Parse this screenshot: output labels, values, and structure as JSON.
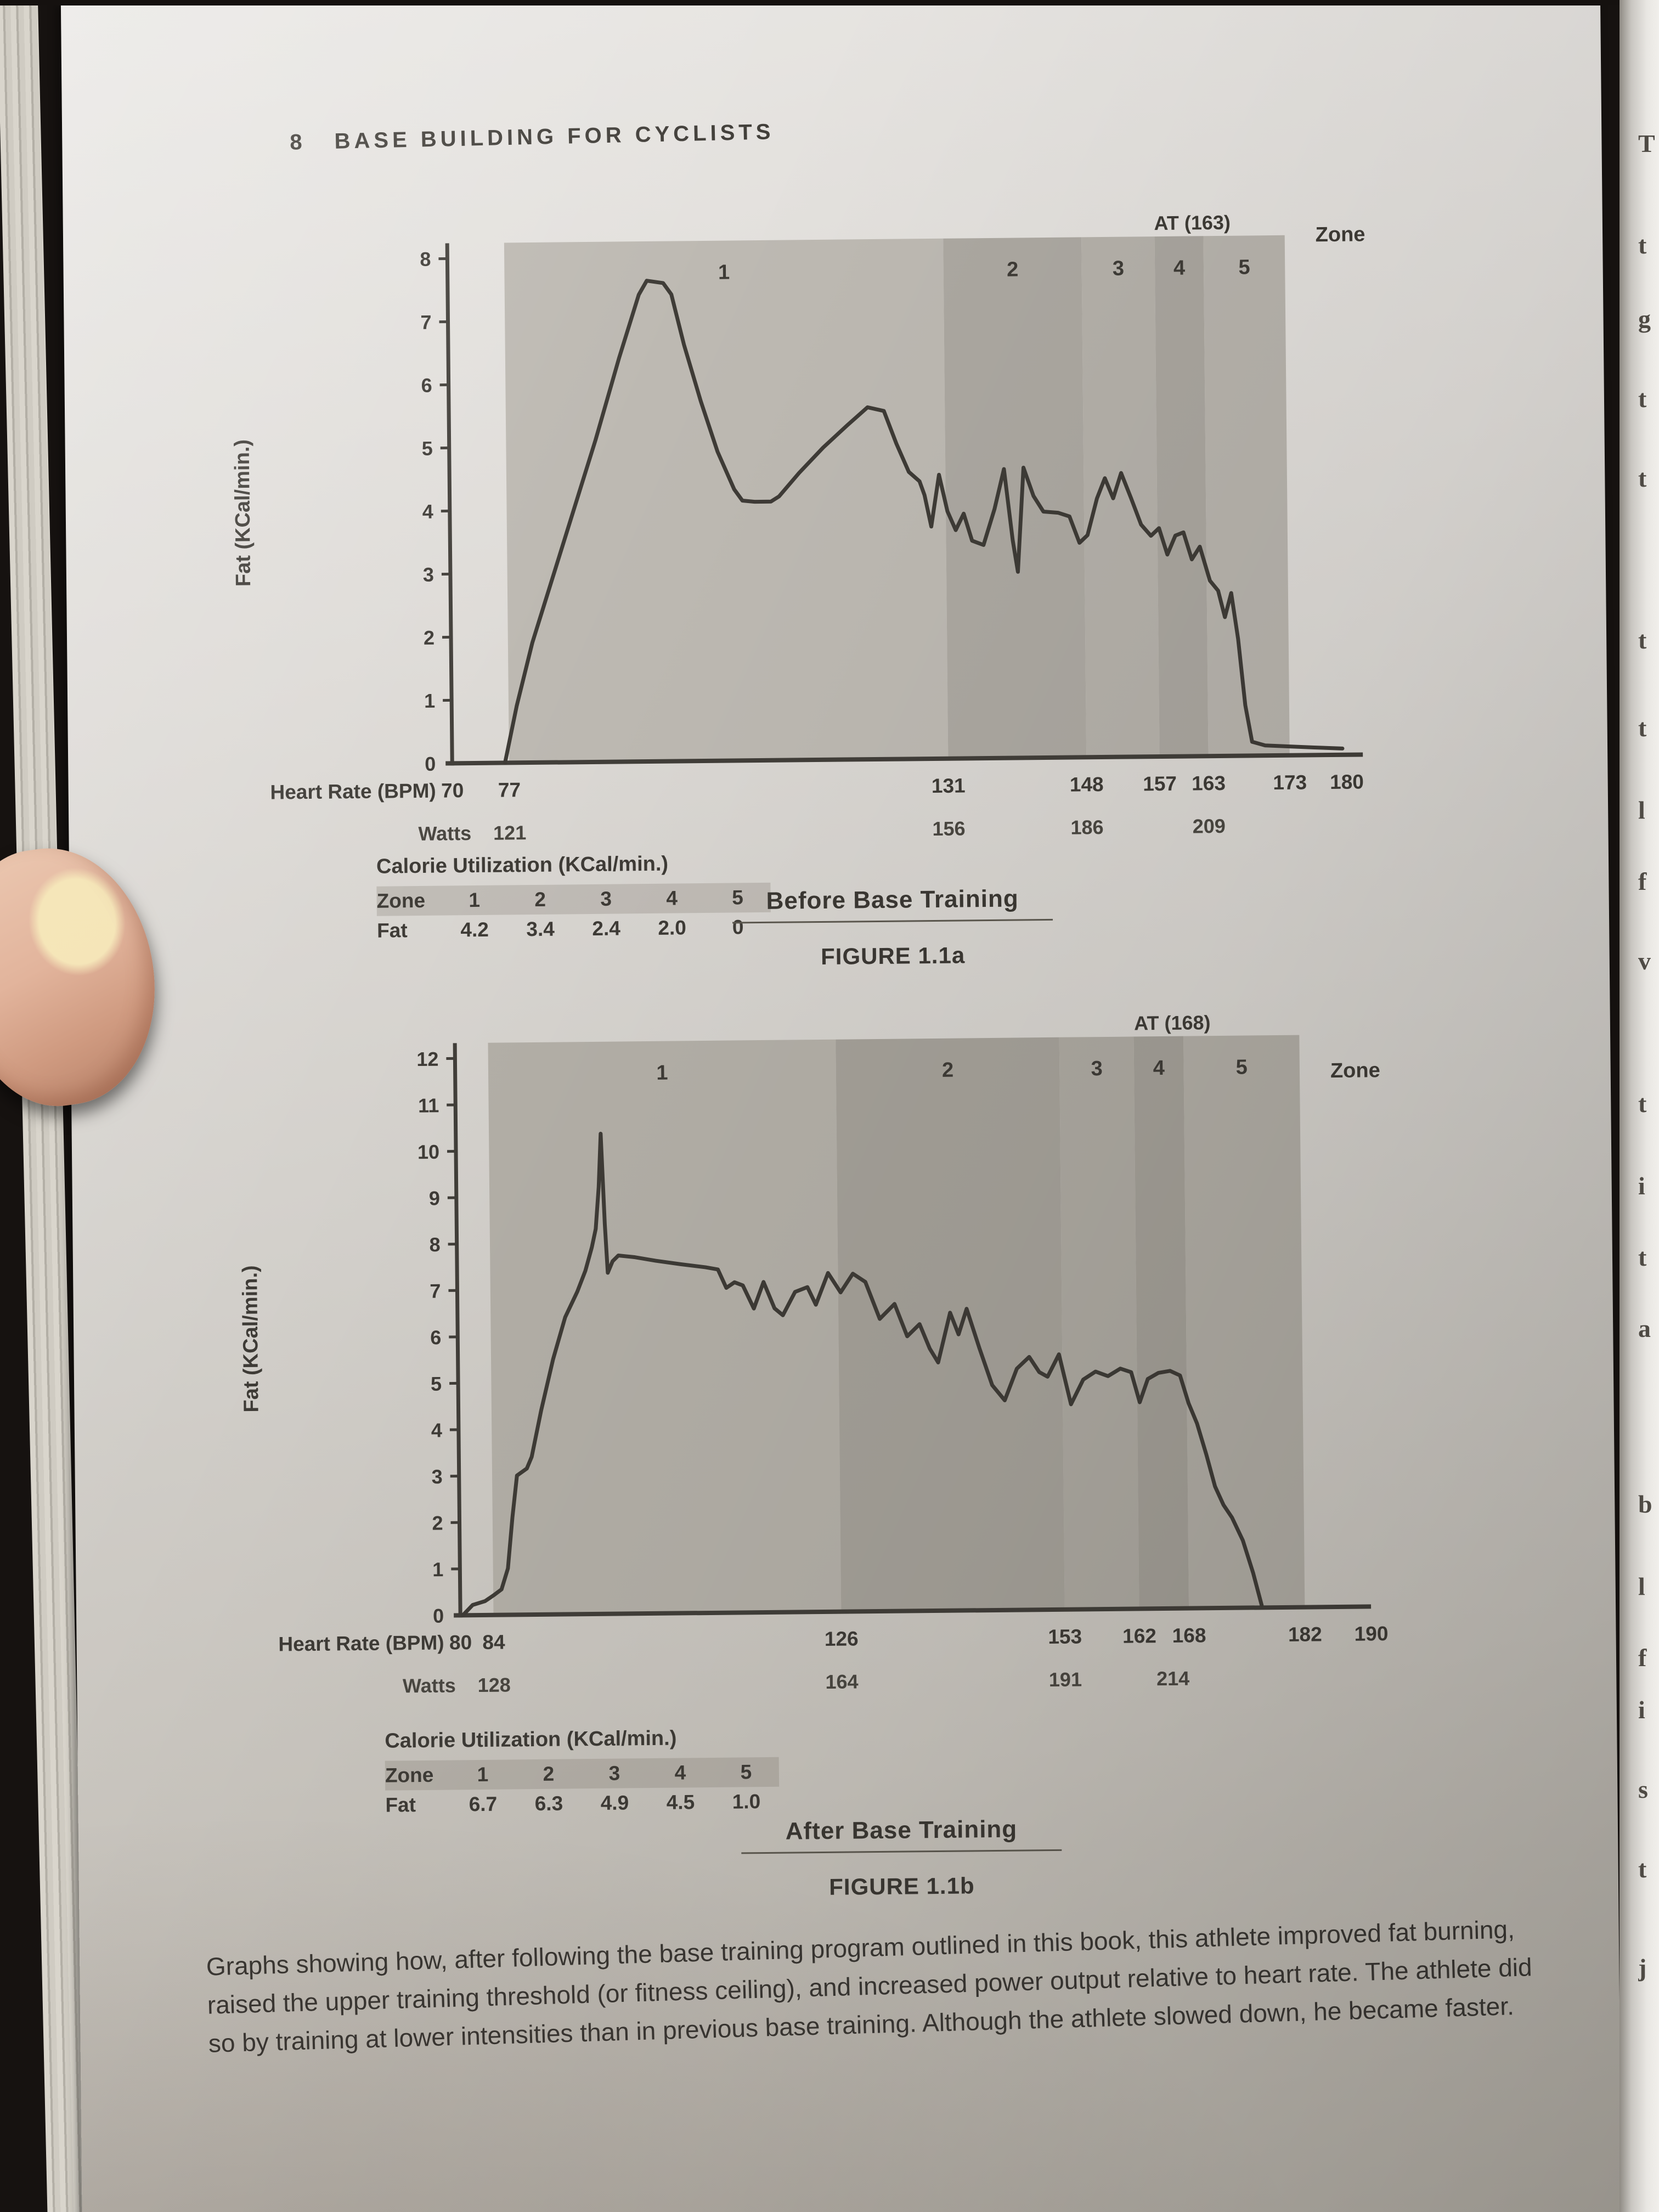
{
  "page": {
    "number": "8",
    "running_head": "BASE BUILDING FOR CYCLISTS",
    "caption": "Graphs showing how, after following the base training program outlined in this book, this athlete improved fat burning, raised the upper training threshold (or fitness ceiling), and increased power output relative to heart rate. The athlete did so by training at lower intensities than in previous base training. Although the athlete slowed down, he became faster."
  },
  "colors": {
    "curve": "#3e3b36",
    "axis": "#413e39",
    "chart_text": "#3e3b36",
    "page_light": "#e9e7e4",
    "page_dark": "#b4afa6"
  },
  "chart_data": [
    {
      "id": "figure-1-1a",
      "type": "line",
      "title": "Before Base Training",
      "figure_label": "FIGURE 1.1a",
      "ylabel": "Fat (KCal/min.)",
      "ylim": [
        0,
        8
      ],
      "yticks": [
        0,
        1,
        2,
        3,
        4,
        5,
        6,
        7,
        8
      ],
      "xlabel": "Heart Rate (BPM)",
      "x_bpm_range": [
        70,
        182
      ],
      "at_label": "AT (163)",
      "at_bpm": 163,
      "zone_axis_label": "Zone",
      "zones": [
        {
          "label": "1",
          "from": 77,
          "to": 131
        },
        {
          "label": "2",
          "from": 131,
          "to": 148
        },
        {
          "label": "3",
          "from": 148,
          "to": 157
        },
        {
          "label": "4",
          "from": 157,
          "to": 163
        },
        {
          "label": "5",
          "from": 163,
          "to": 173
        }
      ],
      "zone_fills": [
        "#bdb9b2",
        "#aca8a1",
        "#b4b0a9",
        "#a9a59e",
        "#b6b2ab"
      ],
      "hr_ticks": [
        70,
        77,
        131,
        148,
        157,
        163,
        173,
        180
      ],
      "watts_label": "Watts",
      "watts_ticks": [
        {
          "bpm": 77,
          "value": 121
        },
        {
          "bpm": 131,
          "value": 156
        },
        {
          "bpm": 148,
          "value": 186
        },
        {
          "bpm": 163,
          "value": 209
        }
      ],
      "series": [
        {
          "name": "fat-burn-before",
          "points": [
            [
              76.5,
              0
            ],
            [
              78,
              0.9
            ],
            [
              80,
              1.9
            ],
            [
              83,
              3.1
            ],
            [
              86,
              4.3
            ],
            [
              88,
              5.1
            ],
            [
              91,
              6.4
            ],
            [
              93.5,
              7.4
            ],
            [
              94.5,
              7.62
            ],
            [
              96.5,
              7.58
            ],
            [
              97.5,
              7.4
            ],
            [
              99,
              6.6
            ],
            [
              101,
              5.7
            ],
            [
              103,
              4.9
            ],
            [
              105,
              4.3
            ],
            [
              106,
              4.12
            ],
            [
              107.5,
              4.1
            ],
            [
              109.5,
              4.1
            ],
            [
              110.5,
              4.18
            ],
            [
              113,
              4.55
            ],
            [
              116,
              4.95
            ],
            [
              119,
              5.3
            ],
            [
              121.5,
              5.58
            ],
            [
              123.5,
              5.52
            ],
            [
              125,
              5.0
            ],
            [
              126.5,
              4.55
            ],
            [
              127.8,
              4.4
            ],
            [
              128.4,
              4.18
            ],
            [
              129.2,
              3.68
            ],
            [
              130.2,
              4.5
            ],
            [
              131.2,
              3.92
            ],
            [
              132.2,
              3.62
            ],
            [
              133.2,
              3.88
            ],
            [
              134.2,
              3.45
            ],
            [
              135.6,
              3.38
            ],
            [
              137,
              3.95
            ],
            [
              138.2,
              4.58
            ],
            [
              139.2,
              3.45
            ],
            [
              139.8,
              2.95
            ],
            [
              140.6,
              4.6
            ],
            [
              141.8,
              4.15
            ],
            [
              143,
              3.9
            ],
            [
              144.8,
              3.88
            ],
            [
              146.2,
              3.82
            ],
            [
              147.4,
              3.4
            ],
            [
              148.4,
              3.52
            ],
            [
              149.6,
              4.1
            ],
            [
              150.6,
              4.42
            ],
            [
              151.6,
              4.1
            ],
            [
              152.6,
              4.5
            ],
            [
              153.8,
              4.1
            ],
            [
              155,
              3.68
            ],
            [
              156.2,
              3.5
            ],
            [
              157.2,
              3.62
            ],
            [
              158.2,
              3.2
            ],
            [
              159.2,
              3.5
            ],
            [
              160.2,
              3.55
            ],
            [
              161.2,
              3.12
            ],
            [
              162.2,
              3.32
            ],
            [
              163.4,
              2.78
            ],
            [
              164.4,
              2.62
            ],
            [
              165.2,
              2.2
            ],
            [
              166,
              2.58
            ],
            [
              166.8,
              1.85
            ],
            [
              167.6,
              0.8
            ],
            [
              168.4,
              0.22
            ],
            [
              170,
              0.16
            ],
            [
              173,
              0.14
            ],
            [
              176,
              0.12
            ],
            [
              179.5,
              0.1
            ]
          ]
        }
      ],
      "calorie_table": {
        "title": "Calorie Utilization (KCal/min.)",
        "zone_row_label": "Zone",
        "zones": [
          "1",
          "2",
          "3",
          "4",
          "5"
        ],
        "fat_row_label": "Fat",
        "fat": [
          "4.2",
          "3.4",
          "2.4",
          "2.0",
          "0"
        ]
      }
    },
    {
      "id": "figure-1-1b",
      "type": "line",
      "title": "After Base Training",
      "figure_label": "FIGURE 1.1b",
      "ylabel": "Fat (KCal/min.)",
      "ylim": [
        0,
        12
      ],
      "yticks": [
        0,
        1,
        2,
        3,
        4,
        5,
        6,
        7,
        8,
        9,
        10,
        11,
        12
      ],
      "xlabel": "Heart Rate (BPM)",
      "x_bpm_range": [
        80,
        190
      ],
      "at_label": "AT (168)",
      "at_bpm": 168,
      "zone_axis_label": "Zone",
      "zones": [
        {
          "label": "1",
          "from": 84,
          "to": 126
        },
        {
          "label": "2",
          "from": 126,
          "to": 153
        },
        {
          "label": "3",
          "from": 153,
          "to": 162
        },
        {
          "label": "4",
          "from": 162,
          "to": 168
        },
        {
          "label": "5",
          "from": 168,
          "to": 182
        }
      ],
      "zone_fills": [
        "#b3afa7",
        "#a4a098",
        "#aba79f",
        "#a19d95",
        "#aeaaa2"
      ],
      "hr_ticks": [
        80,
        84,
        126,
        153,
        162,
        168,
        182,
        190
      ],
      "watts_label": "Watts",
      "watts_ticks": [
        {
          "bpm": 84,
          "value": 128
        },
        {
          "bpm": 126,
          "value": 164
        },
        {
          "bpm": 153,
          "value": 191
        },
        {
          "bpm": 166,
          "value": 214
        }
      ],
      "series": [
        {
          "name": "fat-burn-after",
          "points": [
            [
              80.3,
              0
            ],
            [
              81.5,
              0.22
            ],
            [
              83,
              0.3
            ],
            [
              84,
              0.42
            ],
            [
              85,
              0.55
            ],
            [
              85.8,
              1.0
            ],
            [
              86.4,
              2.1
            ],
            [
              87,
              3.0
            ],
            [
              88.2,
              3.15
            ],
            [
              88.8,
              3.4
            ],
            [
              90,
              4.4
            ],
            [
              91.5,
              5.5
            ],
            [
              93,
              6.4
            ],
            [
              94.5,
              6.95
            ],
            [
              95.5,
              7.4
            ],
            [
              96.3,
              7.9
            ],
            [
              96.8,
              8.3
            ],
            [
              97.2,
              9.2
            ],
            [
              97.5,
              10.35
            ],
            [
              97.9,
              8.4
            ],
            [
              98.2,
              7.35
            ],
            [
              98.8,
              7.6
            ],
            [
              99.5,
              7.72
            ],
            [
              101.5,
              7.68
            ],
            [
              104,
              7.6
            ],
            [
              107,
              7.52
            ],
            [
              110,
              7.45
            ],
            [
              111.5,
              7.4
            ],
            [
              112.5,
              7.0
            ],
            [
              113.5,
              7.12
            ],
            [
              114.5,
              7.05
            ],
            [
              115.8,
              6.55
            ],
            [
              117,
              7.12
            ],
            [
              118.3,
              6.55
            ],
            [
              119.3,
              6.4
            ],
            [
              120.8,
              6.9
            ],
            [
              122.3,
              7.0
            ],
            [
              123.3,
              6.62
            ],
            [
              124.8,
              7.3
            ],
            [
              126.3,
              6.88
            ],
            [
              127.8,
              7.28
            ],
            [
              129.3,
              7.1
            ],
            [
              131,
              6.3
            ],
            [
              132.8,
              6.62
            ],
            [
              134.3,
              5.92
            ],
            [
              135.8,
              6.18
            ],
            [
              137,
              5.65
            ],
            [
              138,
              5.35
            ],
            [
              139.5,
              6.42
            ],
            [
              140.5,
              5.95
            ],
            [
              141.5,
              6.5
            ],
            [
              143,
              5.65
            ],
            [
              144.5,
              4.85
            ],
            [
              146,
              4.52
            ],
            [
              147.5,
              5.2
            ],
            [
              149,
              5.45
            ],
            [
              150.2,
              5.12
            ],
            [
              151.2,
              5.02
            ],
            [
              152.6,
              5.5
            ],
            [
              154,
              4.42
            ],
            [
              155.5,
              4.95
            ],
            [
              157,
              5.12
            ],
            [
              158.5,
              5.02
            ],
            [
              160,
              5.18
            ],
            [
              161.3,
              5.1
            ],
            [
              162.3,
              4.45
            ],
            [
              163.3,
              4.95
            ],
            [
              164.6,
              5.08
            ],
            [
              166,
              5.12
            ],
            [
              167.2,
              5.02
            ],
            [
              168.2,
              4.42
            ],
            [
              169.2,
              3.98
            ],
            [
              170.3,
              3.3
            ],
            [
              171.3,
              2.62
            ],
            [
              172.3,
              2.22
            ],
            [
              173.3,
              1.95
            ],
            [
              174.6,
              1.45
            ],
            [
              175.8,
              0.75
            ],
            [
              176.8,
              0.05
            ]
          ]
        }
      ],
      "calorie_table": {
        "title": "Calorie Utilization (KCal/min.)",
        "zone_row_label": "Zone",
        "zones": [
          "1",
          "2",
          "3",
          "4",
          "5"
        ],
        "fat_row_label": "Fat",
        "fat": [
          "6.7",
          "6.3",
          "4.9",
          "4.5",
          "1.0"
        ]
      }
    }
  ],
  "photo": {
    "right_edge_fragments": [
      {
        "y": 235,
        "ch": "T"
      },
      {
        "y": 420,
        "ch": "t"
      },
      {
        "y": 555,
        "ch": "g"
      },
      {
        "y": 700,
        "ch": "t"
      },
      {
        "y": 845,
        "ch": "t"
      },
      {
        "y": 1140,
        "ch": "t"
      },
      {
        "y": 1300,
        "ch": "t"
      },
      {
        "y": 1450,
        "ch": "l"
      },
      {
        "y": 1580,
        "ch": "f"
      },
      {
        "y": 1725,
        "ch": "v"
      },
      {
        "y": 1985,
        "ch": "t"
      },
      {
        "y": 2135,
        "ch": "i"
      },
      {
        "y": 2265,
        "ch": "t"
      },
      {
        "y": 2395,
        "ch": "a"
      },
      {
        "y": 2715,
        "ch": "b"
      },
      {
        "y": 2865,
        "ch": "l"
      },
      {
        "y": 2995,
        "ch": "f"
      },
      {
        "y": 3090,
        "ch": "i"
      },
      {
        "y": 3235,
        "ch": "s"
      },
      {
        "y": 3380,
        "ch": "t"
      },
      {
        "y": 3560,
        "ch": "j"
      }
    ]
  }
}
